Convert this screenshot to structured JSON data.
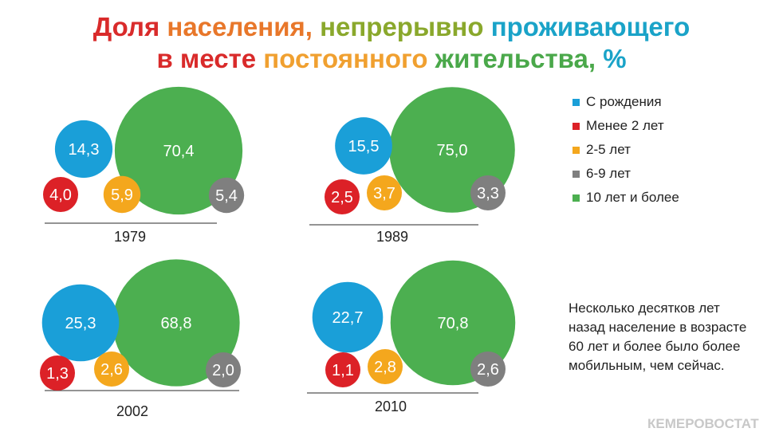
{
  "title": {
    "line1": [
      {
        "text": "Доля",
        "color": "#d92b2b"
      },
      {
        "text": "населения,",
        "color": "#e8772a"
      },
      {
        "text": "непрерывно",
        "color": "#8aa82c"
      },
      {
        "text": "проживающего",
        "color": "#1aa3c8"
      }
    ],
    "line2": [
      {
        "text": "в",
        "color": "#d92b2b"
      },
      {
        "text": "месте",
        "color": "#d92b2b"
      },
      {
        "text": "постоянного",
        "color": "#f0a030"
      },
      {
        "text": "жительства,",
        "color": "#4aa84a"
      },
      {
        "text": "%",
        "color": "#1aa3c8"
      }
    ]
  },
  "legend": [
    {
      "label": "С рождения",
      "color": "#1a9fd8"
    },
    {
      "label": "Менее 2 лет",
      "color": "#dc2127"
    },
    {
      "label": "2-5 лет",
      "color": "#f4a71d"
    },
    {
      "label": "6-9 лет",
      "color": "#7f7f7f"
    },
    {
      "label": "10 лет и более",
      "color": "#4caf50"
    }
  ],
  "note": "Несколько десятков лет назад население в возрасте 60 лет и более было более мобильным, чем сейчас.",
  "watermark": "КЕМЕРОВОСТАТ",
  "chart_data": [
    {
      "type": "bubble",
      "year": "1979",
      "categories": [
        "С рождения",
        "Менее 2 лет",
        "2-5 лет",
        "6-9 лет",
        "10 лет и более"
      ],
      "values": [
        14.3,
        4.0,
        5.9,
        5.4,
        70.4
      ],
      "labels": [
        "14,3",
        "4,0",
        "5,9",
        "5,4",
        "70,4"
      ]
    },
    {
      "type": "bubble",
      "year": "1989",
      "categories": [
        "С рождения",
        "Менее 2 лет",
        "2-5 лет",
        "6-9 лет",
        "10 лет и более"
      ],
      "values": [
        15.5,
        2.5,
        3.7,
        3.3,
        75.0
      ],
      "labels": [
        "15,5",
        "2,5",
        "3,7",
        "3,3",
        "75,0"
      ]
    },
    {
      "type": "bubble",
      "year": "2002",
      "categories": [
        "С рождения",
        "Менее 2 лет",
        "2-5 лет",
        "6-9 лет",
        "10 лет и более"
      ],
      "values": [
        25.3,
        1.3,
        2.6,
        2.0,
        68.8
      ],
      "labels": [
        "25,3",
        "1,3",
        "2,6",
        "2,0",
        "68,8"
      ]
    },
    {
      "type": "bubble",
      "year": "2010",
      "categories": [
        "С рождения",
        "Менее 2 лет",
        "2-5 лет",
        "6-9 лет",
        "10 лет и более"
      ],
      "values": [
        22.7,
        1.1,
        2.8,
        2.6,
        70.8
      ],
      "labels": [
        "22,7",
        "1,1",
        "2,8",
        "2,6",
        "70,8"
      ]
    }
  ]
}
